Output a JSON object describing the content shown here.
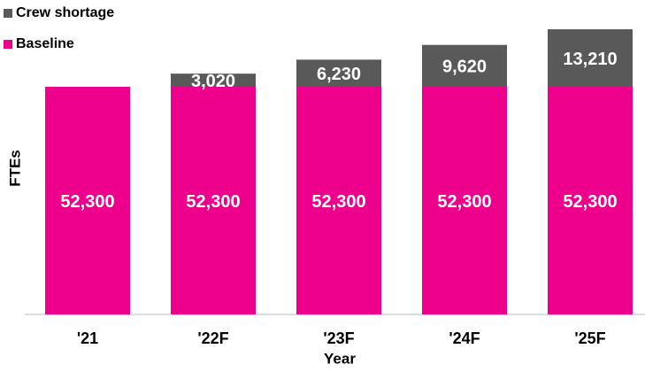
{
  "chart_data": {
    "type": "stacked_bar",
    "x_label": "Year",
    "y_label": "FTEs",
    "categories": [
      "'21",
      "'22F",
      "'23F",
      "'24F",
      "'25F"
    ],
    "series": [
      {
        "name": "Baseline",
        "color": "#ec008c",
        "values": [
          52300,
          52300,
          52300,
          52300,
          52300
        ],
        "value_labels": [
          "52,300",
          "52,300",
          "52,300",
          "52,300",
          "52,300"
        ]
      },
      {
        "name": "Crew shortage",
        "color": "#595959",
        "values": [
          null,
          3020,
          6230,
          9620,
          13210
        ],
        "value_labels": [
          null,
          "3,020",
          "6,230",
          "9,620",
          "13,210"
        ]
      }
    ],
    "ylim": [
      0,
      70000
    ],
    "legend": "top-left"
  }
}
